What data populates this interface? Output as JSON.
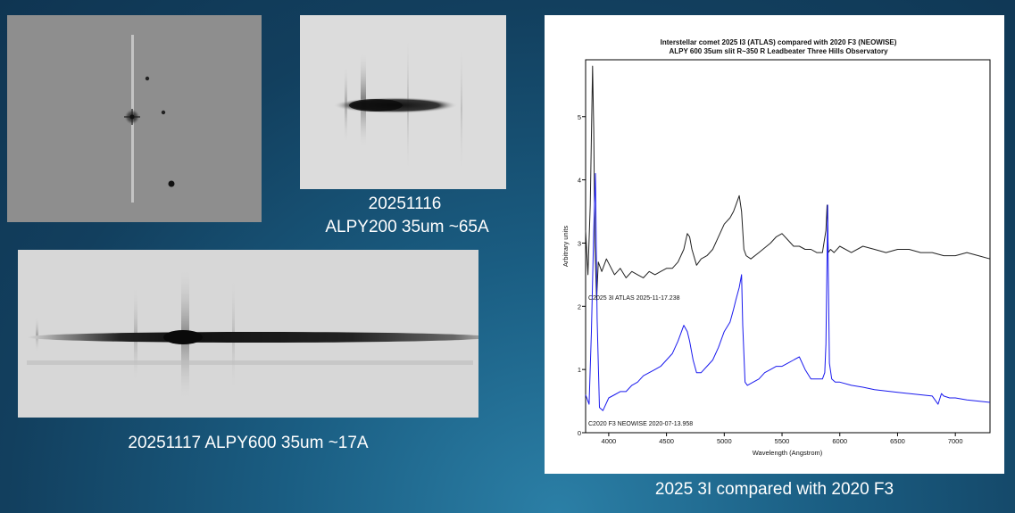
{
  "captions": {
    "image2_line1": "20251116",
    "image2_line2": "ALPY200 35um ~65A",
    "image3": "20251117 ALPY600 35um ~17A",
    "chart": "2025 3I   compared with 2020 F3"
  },
  "colors": {
    "background": "#1a5d82",
    "series_3i": "#222222",
    "series_f3": "#1a1aee"
  },
  "chart_data": {
    "type": "line",
    "title": "Interstellar comet 2025 I3 (ATLAS) compared with 2020 F3 (NEOWISE)",
    "subtitle": "ALPY 600  35um slit R~350  R Leadbeater  Three Hills Observatory",
    "xlabel": "Wavelength (Angstrom)",
    "ylabel": "Arbitrary units",
    "xlim": [
      3800,
      7300
    ],
    "ylim": [
      0,
      5.9
    ],
    "xticks": [
      4000,
      4500,
      5000,
      5500,
      6000,
      6500,
      7000
    ],
    "yticks": [
      0,
      1,
      2,
      3,
      4,
      5
    ],
    "grid": false,
    "legend": "none",
    "annotations": [
      "C2025 3I ATLAS  2025-11-17.238",
      "C2020 F3 NEOWISE  2020-07-13.958"
    ],
    "series": [
      {
        "name": "C2025 3I ATLAS  2025-11-17.238",
        "x": [
          3800,
          3820,
          3840,
          3860,
          3870,
          3880,
          3895,
          3910,
          3940,
          3980,
          4050,
          4100,
          4150,
          4200,
          4250,
          4300,
          4350,
          4400,
          4450,
          4500,
          4550,
          4600,
          4650,
          4680,
          4700,
          4720,
          4760,
          4800,
          4850,
          4900,
          4950,
          5000,
          5050,
          5080,
          5100,
          5130,
          5150,
          5170,
          5190,
          5230,
          5300,
          5400,
          5450,
          5500,
          5550,
          5600,
          5650,
          5700,
          5750,
          5800,
          5850,
          5880,
          5890,
          5895,
          5900,
          5920,
          5950,
          6000,
          6100,
          6200,
          6300,
          6400,
          6500,
          6600,
          6700,
          6800,
          6900,
          7000,
          7100,
          7200,
          7300
        ],
        "y": [
          3.2,
          2.5,
          3.6,
          5.8,
          4.8,
          3.0,
          2.1,
          2.7,
          2.55,
          2.75,
          2.5,
          2.6,
          2.45,
          2.55,
          2.5,
          2.45,
          2.55,
          2.5,
          2.55,
          2.6,
          2.6,
          2.7,
          2.9,
          3.15,
          3.1,
          2.9,
          2.65,
          2.75,
          2.8,
          2.9,
          3.1,
          3.3,
          3.4,
          3.5,
          3.6,
          3.75,
          3.5,
          2.9,
          2.8,
          2.75,
          2.85,
          3.0,
          3.1,
          3.15,
          3.05,
          2.95,
          2.95,
          2.9,
          2.9,
          2.85,
          2.85,
          3.2,
          3.6,
          3.2,
          2.85,
          2.9,
          2.85,
          2.95,
          2.85,
          2.95,
          2.9,
          2.85,
          2.9,
          2.9,
          2.85,
          2.85,
          2.8,
          2.8,
          2.85,
          2.8,
          2.75
        ]
      },
      {
        "name": "C2020 F3 NEOWISE  2020-07-13.958",
        "x": [
          3800,
          3830,
          3850,
          3870,
          3885,
          3900,
          3920,
          3950,
          4000,
          4050,
          4100,
          4150,
          4200,
          4250,
          4300,
          4350,
          4400,
          4450,
          4500,
          4550,
          4600,
          4650,
          4680,
          4700,
          4730,
          4760,
          4800,
          4850,
          4900,
          4950,
          5000,
          5050,
          5080,
          5100,
          5130,
          5150,
          5160,
          5180,
          5200,
          5250,
          5300,
          5350,
          5400,
          5450,
          5500,
          5550,
          5600,
          5650,
          5700,
          5750,
          5800,
          5850,
          5870,
          5880,
          5890,
          5895,
          5900,
          5910,
          5930,
          5960,
          6000,
          6100,
          6200,
          6300,
          6400,
          6500,
          6600,
          6700,
          6800,
          6850,
          6880,
          6900,
          6950,
          7000,
          7100,
          7200,
          7300
        ],
        "y": [
          0.6,
          0.45,
          1.6,
          3.2,
          4.1,
          1.8,
          0.4,
          0.35,
          0.55,
          0.6,
          0.65,
          0.65,
          0.75,
          0.8,
          0.9,
          0.95,
          1.0,
          1.05,
          1.15,
          1.25,
          1.45,
          1.7,
          1.6,
          1.45,
          1.15,
          0.95,
          0.95,
          1.05,
          1.15,
          1.35,
          1.6,
          1.75,
          1.95,
          2.1,
          2.3,
          2.5,
          1.7,
          0.8,
          0.75,
          0.8,
          0.85,
          0.95,
          1.0,
          1.05,
          1.05,
          1.1,
          1.15,
          1.2,
          1.0,
          0.85,
          0.85,
          0.85,
          0.95,
          1.4,
          2.8,
          3.6,
          2.6,
          1.1,
          0.85,
          0.8,
          0.8,
          0.75,
          0.72,
          0.68,
          0.66,
          0.64,
          0.62,
          0.6,
          0.58,
          0.45,
          0.62,
          0.58,
          0.55,
          0.55,
          0.52,
          0.5,
          0.48
        ]
      }
    ]
  }
}
